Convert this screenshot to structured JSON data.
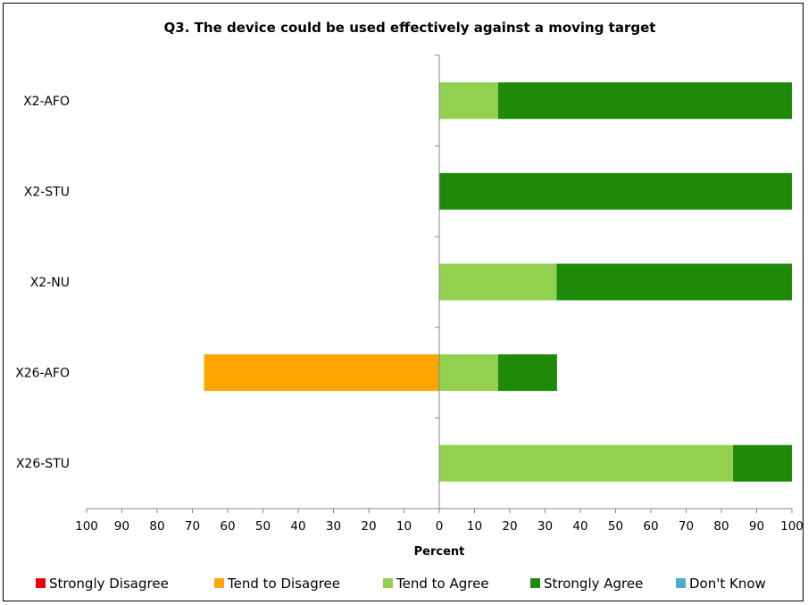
{
  "chart_data": {
    "type": "bar",
    "orientation": "horizontal",
    "stacked": true,
    "diverging": true,
    "title": "Q3. The device could be used effectively against a moving target",
    "xlabel": "Percent",
    "ylabel": "",
    "xlim": [
      -100,
      100
    ],
    "x_ticks": [
      -100,
      -90,
      -80,
      -70,
      -60,
      -50,
      -40,
      -30,
      -20,
      -10,
      0,
      10,
      20,
      30,
      40,
      50,
      60,
      70,
      80,
      90,
      100
    ],
    "x_tick_labels": [
      "100",
      "90",
      "80",
      "70",
      "60",
      "50",
      "40",
      "30",
      "20",
      "10",
      "0",
      "10",
      "20",
      "30",
      "40",
      "50",
      "60",
      "70",
      "80",
      "90",
      "100"
    ],
    "grid": false,
    "legend_position": "bottom",
    "categories": [
      "X2-AFO",
      "X2-STU",
      "X2-NU",
      "X26-AFO",
      "X26-STU"
    ],
    "series": [
      {
        "name": "Strongly Disagree",
        "color": "#ee0000",
        "side": "negative",
        "values": [
          0,
          0,
          0,
          0,
          0
        ]
      },
      {
        "name": "Tend to Disagree",
        "color": "#ffa500",
        "side": "negative",
        "values": [
          0,
          0,
          0,
          66.7,
          0
        ]
      },
      {
        "name": "Tend to Agree",
        "color": "#92d050",
        "side": "positive",
        "values": [
          16.7,
          0,
          33.3,
          16.7,
          83.3
        ]
      },
      {
        "name": "Strongly Agree",
        "color": "#1f8a0a",
        "side": "positive",
        "values": [
          83.3,
          100,
          66.7,
          16.7,
          16.7
        ]
      },
      {
        "name": "Don't Know",
        "color": "#4bacc6",
        "side": "positive",
        "values": [
          0,
          0,
          0,
          0,
          0
        ]
      }
    ]
  }
}
